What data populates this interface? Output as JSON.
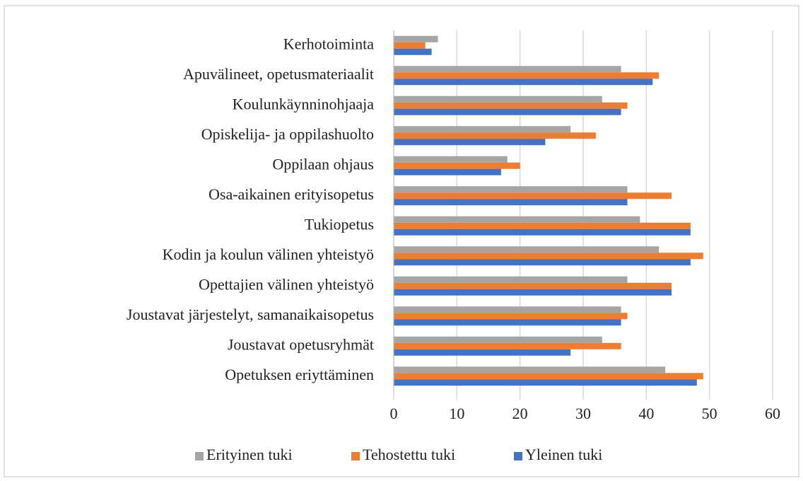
{
  "chart_data": {
    "type": "hbar",
    "categories": [
      "Kerhotoiminta",
      "Apuvälineet, opetusmateriaalit",
      "Koulunkäynninohjaaja",
      "Opiskelija- ja oppilashuolto",
      "Oppilaan ohjaus",
      "Osa-aikainen erityisopetus",
      "Tukiopetus",
      "Kodin ja koulun välinen yhteistyö",
      "Opettajien välinen yhteistyö",
      "Joustavat järjestelyt, samanaikaisopetus",
      "Joustavat opetusryhmät",
      "Opetuksen eriyttäminen"
    ],
    "series": [
      {
        "name": "Erityinen tuki",
        "color": "#a5a5a5",
        "values": [
          7,
          36,
          33,
          28,
          18,
          37,
          39,
          42,
          37,
          36,
          33,
          43
        ]
      },
      {
        "name": "Tehostettu tuki",
        "color": "#ed7d31",
        "values": [
          5,
          42,
          37,
          32,
          20,
          44,
          47,
          49,
          44,
          37,
          36,
          49
        ]
      },
      {
        "name": "Yleinen tuki",
        "color": "#4472c4",
        "values": [
          6,
          41,
          36,
          24,
          17,
          37,
          47,
          47,
          44,
          36,
          28,
          48
        ]
      }
    ],
    "xlim": [
      0,
      60
    ],
    "xticks": [
      0,
      10,
      20,
      30,
      40,
      50,
      60
    ],
    "grid": true,
    "legend": "bottom"
  }
}
